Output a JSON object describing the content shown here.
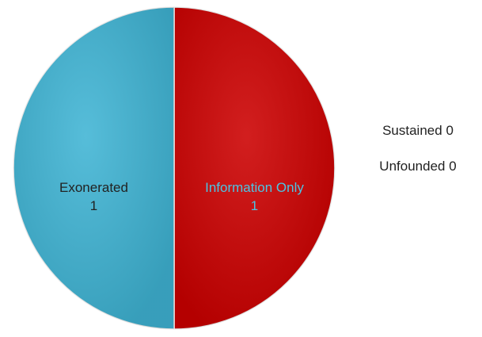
{
  "chart_data": {
    "type": "pie",
    "categories": [
      "Information Only",
      "Exonerated",
      "Sustained",
      "Unfounded"
    ],
    "values": [
      1,
      1,
      0,
      0
    ],
    "colors": [
      "#cc0000",
      "#3fb4d4",
      "#4f81bd",
      "#9bbb59"
    ]
  }
}
